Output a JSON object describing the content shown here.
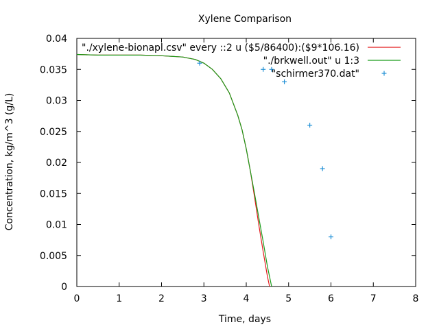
{
  "chart_data": {
    "type": "line",
    "title": "Xylene Comparison",
    "xlabel": "Time, days",
    "ylabel": "Concentration, kg/m^3 (g/L)",
    "xlim": [
      0,
      8
    ],
    "ylim": [
      0,
      0.04
    ],
    "xticks": [
      "0",
      "1",
      "2",
      "3",
      "4",
      "5",
      "6",
      "7",
      "8"
    ],
    "yticks": [
      "0",
      "0.005",
      "0.01",
      "0.015",
      "0.02",
      "0.025",
      "0.03",
      "0.035",
      "0.04"
    ],
    "grid": false,
    "legend_position": "top-right",
    "series": [
      {
        "name": "\"./xylene-bionapl.csv\" every ::2 u ($5/86400):($9*106.16)",
        "color": "#e41a1c",
        "style": "line",
        "x": [
          0,
          0.5,
          1,
          1.5,
          2,
          2.5,
          2.8,
          3.0,
          3.2,
          3.4,
          3.6,
          3.8,
          3.9,
          4.0,
          4.1,
          4.2,
          4.3,
          4.4,
          4.5,
          4.55
        ],
        "y": [
          0.0374,
          0.0373,
          0.0373,
          0.0373,
          0.0372,
          0.037,
          0.0366,
          0.036,
          0.035,
          0.0335,
          0.0312,
          0.0276,
          0.0253,
          0.0222,
          0.0185,
          0.0142,
          0.0098,
          0.0056,
          0.0016,
          0
        ]
      },
      {
        "name": "\"./brkwell.out\" u 1:3",
        "color": "#1a9c1a",
        "style": "line",
        "x": [
          0,
          0.5,
          1,
          1.5,
          2,
          2.5,
          2.8,
          3.0,
          3.2,
          3.4,
          3.6,
          3.8,
          3.9,
          4.0,
          4.1,
          4.2,
          4.3,
          4.4,
          4.5,
          4.6
        ],
        "y": [
          0.0374,
          0.0373,
          0.0373,
          0.0373,
          0.0372,
          0.037,
          0.0366,
          0.036,
          0.035,
          0.0335,
          0.0312,
          0.0276,
          0.0253,
          0.0222,
          0.0185,
          0.0148,
          0.011,
          0.0072,
          0.0032,
          0
        ]
      },
      {
        "name": "\"schirmer370.dat\"",
        "color": "#1f8fd6",
        "style": "points",
        "x": [
          2.9,
          4.4,
          4.6,
          4.9,
          5.5,
          5.8,
          6.0
        ],
        "y": [
          0.036,
          0.035,
          0.035,
          0.033,
          0.026,
          0.019,
          0.008
        ]
      }
    ]
  }
}
